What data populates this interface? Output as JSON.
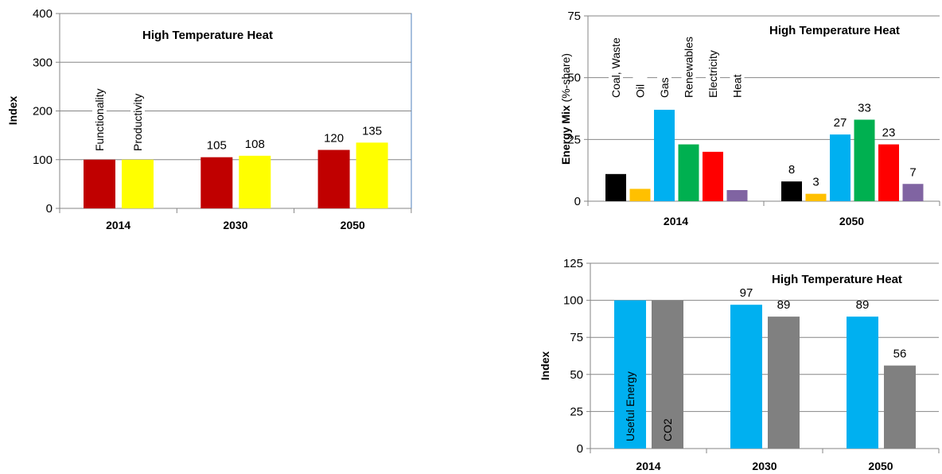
{
  "chart_data": [
    {
      "id": "functionality",
      "type": "bar",
      "title": "High Temperature Heat",
      "ylabel": "Index",
      "ylim": [
        0,
        400
      ],
      "yticks": [
        "0",
        "100",
        "200",
        "300",
        "400"
      ],
      "categories": [
        "2014",
        "2030",
        "2050"
      ],
      "series": [
        {
          "name": "Functionality",
          "color": "#C00000",
          "values": [
            100,
            105,
            120
          ],
          "labels": [
            "",
            "105",
            "120"
          ]
        },
        {
          "name": "Productivity",
          "color": "#FFFF00",
          "values": [
            100,
            108,
            135
          ],
          "labels": [
            "",
            "108",
            "135"
          ]
        }
      ],
      "grid": true,
      "legend": "series names printed vertically inside 2014 bars"
    },
    {
      "id": "energy-mix",
      "type": "bar",
      "title": "High Temperature Heat",
      "ylabel_bold": "Energy Mix",
      "ylabel_rest": "(%-share)",
      "ylim": [
        0,
        75
      ],
      "yticks": [
        "0",
        "25",
        "50",
        "75"
      ],
      "categories": [
        "2014",
        "2050"
      ],
      "series": [
        {
          "name": "Coal, Waste",
          "color": "#000000",
          "values": [
            11,
            8
          ],
          "labels": [
            "",
            "8"
          ]
        },
        {
          "name": "Oil",
          "color": "#FFC000",
          "values": [
            5,
            3
          ],
          "labels": [
            "",
            "3"
          ]
        },
        {
          "name": "Gas",
          "color": "#00B0F0",
          "values": [
            37,
            27
          ],
          "labels": [
            "",
            "27"
          ]
        },
        {
          "name": "Renewables",
          "color": "#00B050",
          "values": [
            23,
            33
          ],
          "labels": [
            "",
            "33"
          ]
        },
        {
          "name": "Electricity",
          "color": "#FF0000",
          "values": [
            20,
            23
          ],
          "labels": [
            "",
            "23"
          ]
        },
        {
          "name": "Heat",
          "color": "#8064A2",
          "values": [
            4.5,
            7
          ],
          "labels": [
            "",
            "7"
          ]
        }
      ],
      "grid": true,
      "legend": "series names printed vertically above 2014 bars"
    },
    {
      "id": "useful-energy-co2",
      "type": "bar",
      "title": "High Temperature Heat",
      "ylabel": "Index",
      "ylim": [
        0,
        125
      ],
      "yticks": [
        "0",
        "25",
        "50",
        "75",
        "100",
        "125"
      ],
      "categories": [
        "2014",
        "2030",
        "2050"
      ],
      "series": [
        {
          "name": "Useful Energy",
          "color": "#00B0F0",
          "values": [
            100,
            97,
            89
          ],
          "labels": [
            "",
            "97",
            "89"
          ]
        },
        {
          "name": "CO2",
          "color": "#808080",
          "values": [
            100,
            89,
            56
          ],
          "labels": [
            "",
            "89",
            "56"
          ]
        }
      ],
      "grid": true,
      "legend": "series names printed vertically inside 2014 bars"
    }
  ]
}
